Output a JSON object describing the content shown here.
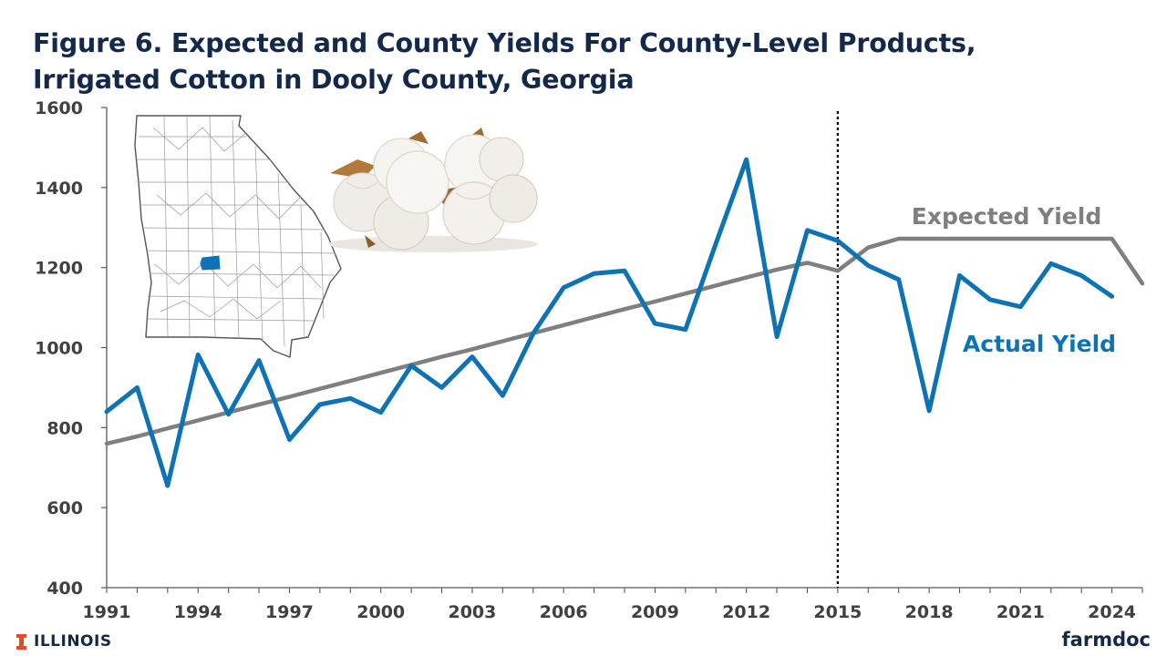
{
  "header": {
    "title_line1": "Figure 6.  Expected and County Yields For County-Level Products,",
    "title_line2": "Irrigated Cotton in Dooly County, Georgia"
  },
  "footer": {
    "university": "ILLINOIS",
    "brand": "farmdoc"
  },
  "colors": {
    "title": "#13294B",
    "actual": "#0E73B4",
    "expected": "#7F7F7F",
    "illinois_orange": "#E84A27"
  },
  "inset_images": [
    "georgia-county-map",
    "cotton-bolls-photo"
  ],
  "chart_data": {
    "type": "line",
    "x": [
      1991,
      1992,
      1993,
      1994,
      1995,
      1996,
      1997,
      1998,
      1999,
      2000,
      2001,
      2002,
      2003,
      2004,
      2005,
      2006,
      2007,
      2008,
      2009,
      2010,
      2011,
      2012,
      2013,
      2014,
      2015,
      2016,
      2017,
      2018,
      2019,
      2020,
      2021,
      2022,
      2023,
      2024,
      2025
    ],
    "xlim": [
      1991,
      2025
    ],
    "ylim": [
      400,
      1600
    ],
    "yticks": [
      400,
      600,
      800,
      1000,
      1200,
      1400,
      1600
    ],
    "xticks": [
      1991,
      1994,
      1997,
      2000,
      2003,
      2006,
      2009,
      2012,
      2015,
      2018,
      2021,
      2024
    ],
    "series": [
      {
        "name": "Actual Yield",
        "color": "#0E73B4",
        "values": [
          840,
          900,
          655,
          982,
          833,
          968,
          770,
          858,
          873,
          838,
          955,
          900,
          977,
          880,
          1035,
          1150,
          1185,
          1192,
          1060,
          1045,
          1260,
          1470,
          1027,
          1293,
          1267,
          1205,
          1170,
          842,
          1180,
          1120,
          1102,
          1210,
          1180,
          1128,
          null
        ]
      },
      {
        "name": "Expected Yield",
        "color": "#7F7F7F",
        "values": [
          760,
          778,
          798,
          818,
          838,
          858,
          877,
          897,
          917,
          937,
          957,
          977,
          996,
          1016,
          1036,
          1056,
          1076,
          1096,
          1115,
          1135,
          1155,
          1175,
          1195,
          1212,
          1192,
          1250,
          1272,
          1272,
          1272,
          1272,
          1272,
          1272,
          1272,
          1272,
          1160
        ]
      }
    ],
    "annotations": [
      {
        "text": "Expected Yield",
        "series": "Expected Yield"
      },
      {
        "text": "Actual Yield",
        "series": "Actual Yield"
      }
    ],
    "reference_line": {
      "x": 2015,
      "style": "dotted"
    },
    "grid": false,
    "legend": "none (direct labels)"
  }
}
